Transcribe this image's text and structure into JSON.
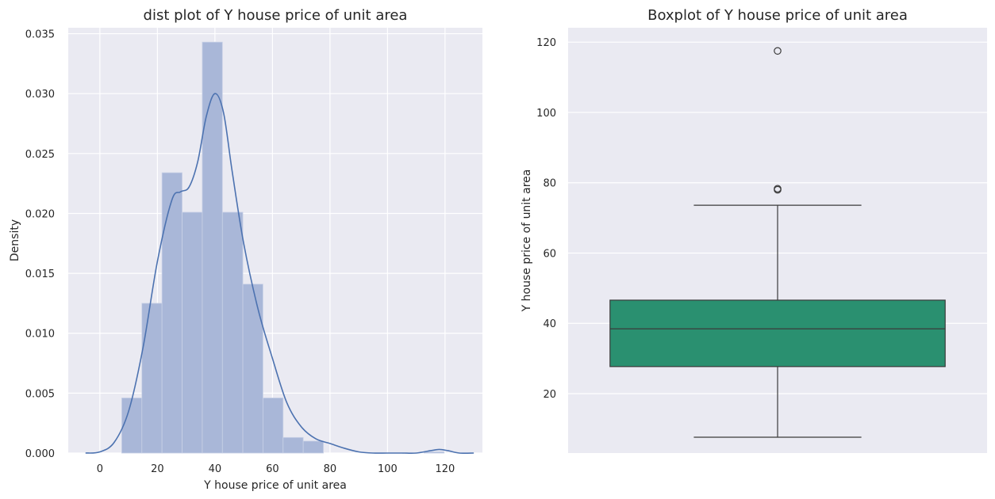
{
  "chart_data": [
    {
      "type": "histogram",
      "title": "dist plot of Y house price of unit area",
      "xlabel": "Y house price of unit area",
      "ylabel": "Density",
      "xlim": [
        -11,
        133
      ],
      "ylim": [
        0,
        0.0355
      ],
      "xticks": [
        0,
        20,
        40,
        60,
        80,
        100,
        120
      ],
      "yticks": [
        0.0,
        0.005,
        0.01,
        0.015,
        0.02,
        0.025,
        0.03,
        0.035
      ],
      "ytick_labels": [
        "0.000",
        "0.005",
        "0.010",
        "0.015",
        "0.020",
        "0.025",
        "0.030",
        "0.035"
      ],
      "bin_edges": [
        7.6,
        14.6,
        21.6,
        28.6,
        35.6,
        42.6,
        49.7,
        56.7,
        63.7,
        70.7,
        77.7,
        84.7,
        91.7,
        98.7,
        105.7,
        112.7,
        119.7
      ],
      "bin_density": [
        0.0046,
        0.0125,
        0.0234,
        0.0201,
        0.0343,
        0.0201,
        0.0141,
        0.0046,
        0.0013,
        0.001,
        0,
        0,
        0,
        0,
        0,
        0.0001
      ],
      "kde_x": [
        -5,
        0,
        5,
        10,
        15,
        20,
        25,
        28,
        31,
        34,
        37,
        40,
        43,
        46,
        50,
        55,
        60,
        65,
        70,
        75,
        80,
        85,
        90,
        95,
        100,
        105,
        110,
        115,
        118,
        121,
        125,
        130
      ],
      "kde_y": [
        0.0,
        0.0001,
        0.0009,
        0.0035,
        0.0088,
        0.016,
        0.0211,
        0.0218,
        0.0222,
        0.0243,
        0.0281,
        0.03,
        0.0284,
        0.0235,
        0.0175,
        0.012,
        0.0079,
        0.0042,
        0.0022,
        0.0012,
        0.0008,
        0.0004,
        0.0001,
        0.0,
        0.0,
        0.0,
        0.0,
        0.0002,
        0.0003,
        0.0002,
        0.0,
        0.0
      ],
      "bar_color": "#a9b7d8",
      "line_color": "#4c72b0",
      "grid": true
    },
    {
      "type": "box",
      "title": "Boxplot of Y house price of unit area",
      "xlabel": "",
      "ylabel": "Y house price of unit area",
      "ylim": [
        3.1,
        124.1
      ],
      "yticks": [
        20,
        40,
        60,
        80,
        100,
        120
      ],
      "whisker_low": 7.6,
      "q1": 27.7,
      "median": 38.45,
      "q3": 46.6,
      "whisker_high": 73.6,
      "outliers": [
        78.0,
        78.3,
        117.5
      ],
      "box_color": "#2a9070",
      "grid": true
    }
  ],
  "colors": {
    "panel_bg": "#eaeaf2",
    "grid": "#ffffff",
    "edge": "#3a3a3a"
  }
}
